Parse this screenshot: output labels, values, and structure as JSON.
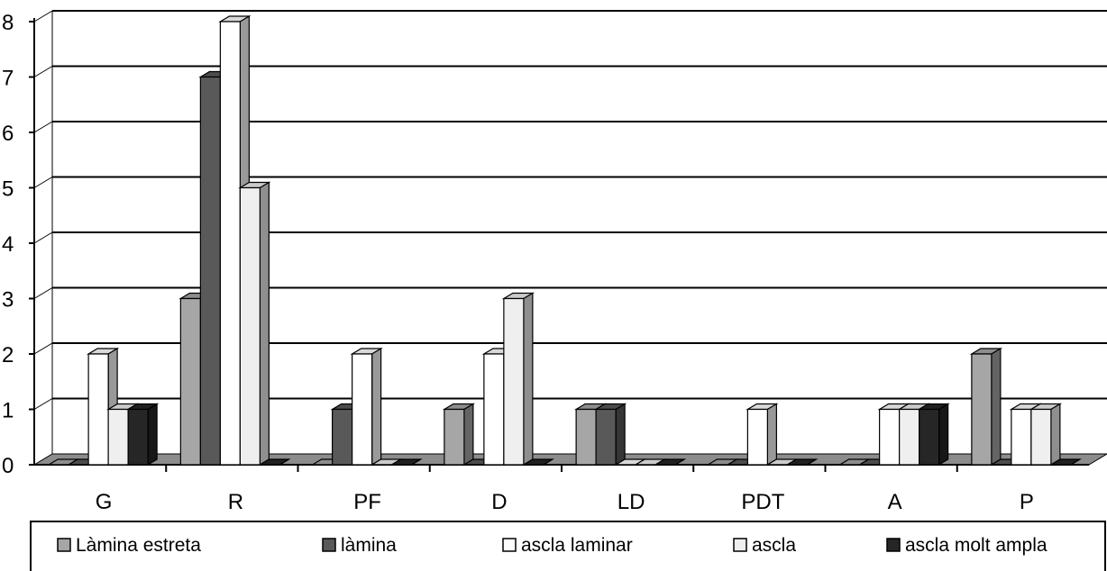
{
  "chart_data": {
    "type": "bar",
    "categories": [
      "G",
      "R",
      "PF",
      "D",
      "LD",
      "PDT",
      "A",
      "P"
    ],
    "series": [
      {
        "name": "Làmina estreta",
        "values": [
          0,
          3,
          0,
          1,
          1,
          0,
          0,
          2
        ],
        "color": "#a6a6a6"
      },
      {
        "name": "làmina",
        "values": [
          0,
          7,
          1,
          0,
          1,
          0,
          0,
          0
        ],
        "color": "#595959"
      },
      {
        "name": "ascla laminar",
        "values": [
          2,
          8,
          2,
          2,
          0,
          1,
          1,
          1
        ],
        "color": "#ffffff"
      },
      {
        "name": "ascla",
        "values": [
          1,
          5,
          0,
          3,
          0,
          0,
          1,
          1
        ],
        "color": "#efefef"
      },
      {
        "name": "ascla molt ampla",
        "values": [
          1,
          0,
          0,
          0,
          0,
          0,
          1,
          0
        ],
        "color": "#262626"
      }
    ],
    "y_ticks": [
      "0",
      "1",
      "2",
      "3",
      "4",
      "5",
      "6",
      "7",
      "8"
    ],
    "ylim": [
      0,
      8
    ],
    "grid": true,
    "legend_position": "bottom",
    "floor_color": "#8c8c8c"
  }
}
